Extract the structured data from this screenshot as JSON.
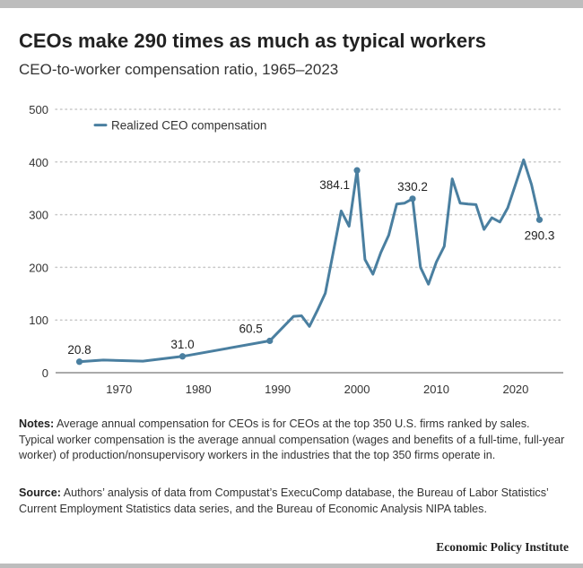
{
  "title": "CEOs make 290 times as much as typical workers",
  "subtitle": "CEO-to-worker compensation ratio, 1965–2023",
  "notes": {
    "label": "Notes:",
    "text": " Average annual compensation for CEOs is for CEOs at the top 350 U.S. firms ranked by sales. Typical worker compensation is the average annual compensation (wages and benefits of a full-time, full-year worker) of production/nonsupervisory workers in the industries that the top 350 firms operate in."
  },
  "source": {
    "label": "Source:",
    "text": " Authors’ analysis of data from Compustat’s ExecuComp database, the Bureau of Labor Statistics’ Current Employment Statistics data series, and the Bureau of Economic Analysis NIPA tables."
  },
  "credit": "Economic Policy Institute",
  "colors": {
    "series": "#4a7fa0",
    "grid": "#c8c8c8"
  },
  "chart_data": {
    "type": "line",
    "title": "CEOs make 290 times as much as typical workers",
    "xlabel": "",
    "ylabel": "",
    "xlim": [
      1962,
      2026
    ],
    "ylim": [
      0,
      500
    ],
    "x_ticks": [
      1970,
      1980,
      1990,
      2000,
      2010,
      2020
    ],
    "y_ticks": [
      0,
      100,
      200,
      300,
      400,
      500
    ],
    "grid": true,
    "legend": {
      "position": "top-left",
      "entries": [
        "Realized CEO compensation"
      ]
    },
    "series": [
      {
        "name": "Realized CEO compensation",
        "x": [
          1965,
          1968,
          1973,
          1978,
          1989,
          1992,
          1993,
          1994,
          1995,
          1996,
          1997,
          1998,
          1999,
          2000,
          2001,
          2002,
          2003,
          2004,
          2005,
          2006,
          2007,
          2008,
          2009,
          2010,
          2011,
          2012,
          2013,
          2014,
          2015,
          2016,
          2017,
          2018,
          2019,
          2020,
          2021,
          2022,
          2023
        ],
        "values": [
          20.8,
          24.0,
          22.0,
          31.0,
          60.5,
          107,
          108,
          88,
          118,
          151,
          228,
          307,
          278,
          384.1,
          215,
          187,
          228,
          261,
          320,
          322,
          330.2,
          200,
          168,
          210,
          240,
          368,
          322,
          320,
          319,
          272,
          294,
          286,
          313,
          358,
          404,
          357,
          290.3
        ]
      }
    ],
    "annotations": [
      {
        "x": 1965,
        "y": 20.8,
        "label": "20.8",
        "pos": "above"
      },
      {
        "x": 1978,
        "y": 31.0,
        "label": "31.0",
        "pos": "above"
      },
      {
        "x": 1989,
        "y": 60.5,
        "label": "60.5",
        "pos": "above-left"
      },
      {
        "x": 2000,
        "y": 384.1,
        "label": "384.1",
        "pos": "left"
      },
      {
        "x": 2007,
        "y": 330.2,
        "label": "330.2",
        "pos": "above"
      },
      {
        "x": 2023,
        "y": 290.3,
        "label": "290.3",
        "pos": "below"
      }
    ]
  }
}
